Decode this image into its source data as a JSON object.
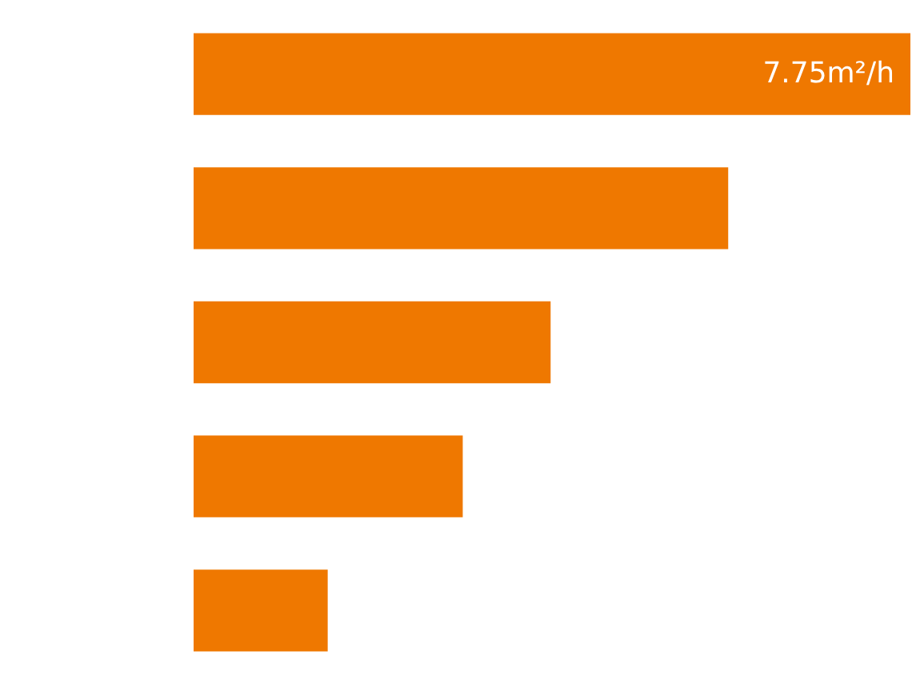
{
  "chart_data": {
    "type": "bar",
    "orientation": "horizontal",
    "categories": [
      null,
      null,
      null,
      null,
      null
    ],
    "values": [
      7.75,
      5.78,
      3.86,
      2.91,
      1.45
    ],
    "color": "#ef7800",
    "value_labels": [
      "7.75m²/h",
      null,
      null,
      null,
      null
    ]
  }
}
